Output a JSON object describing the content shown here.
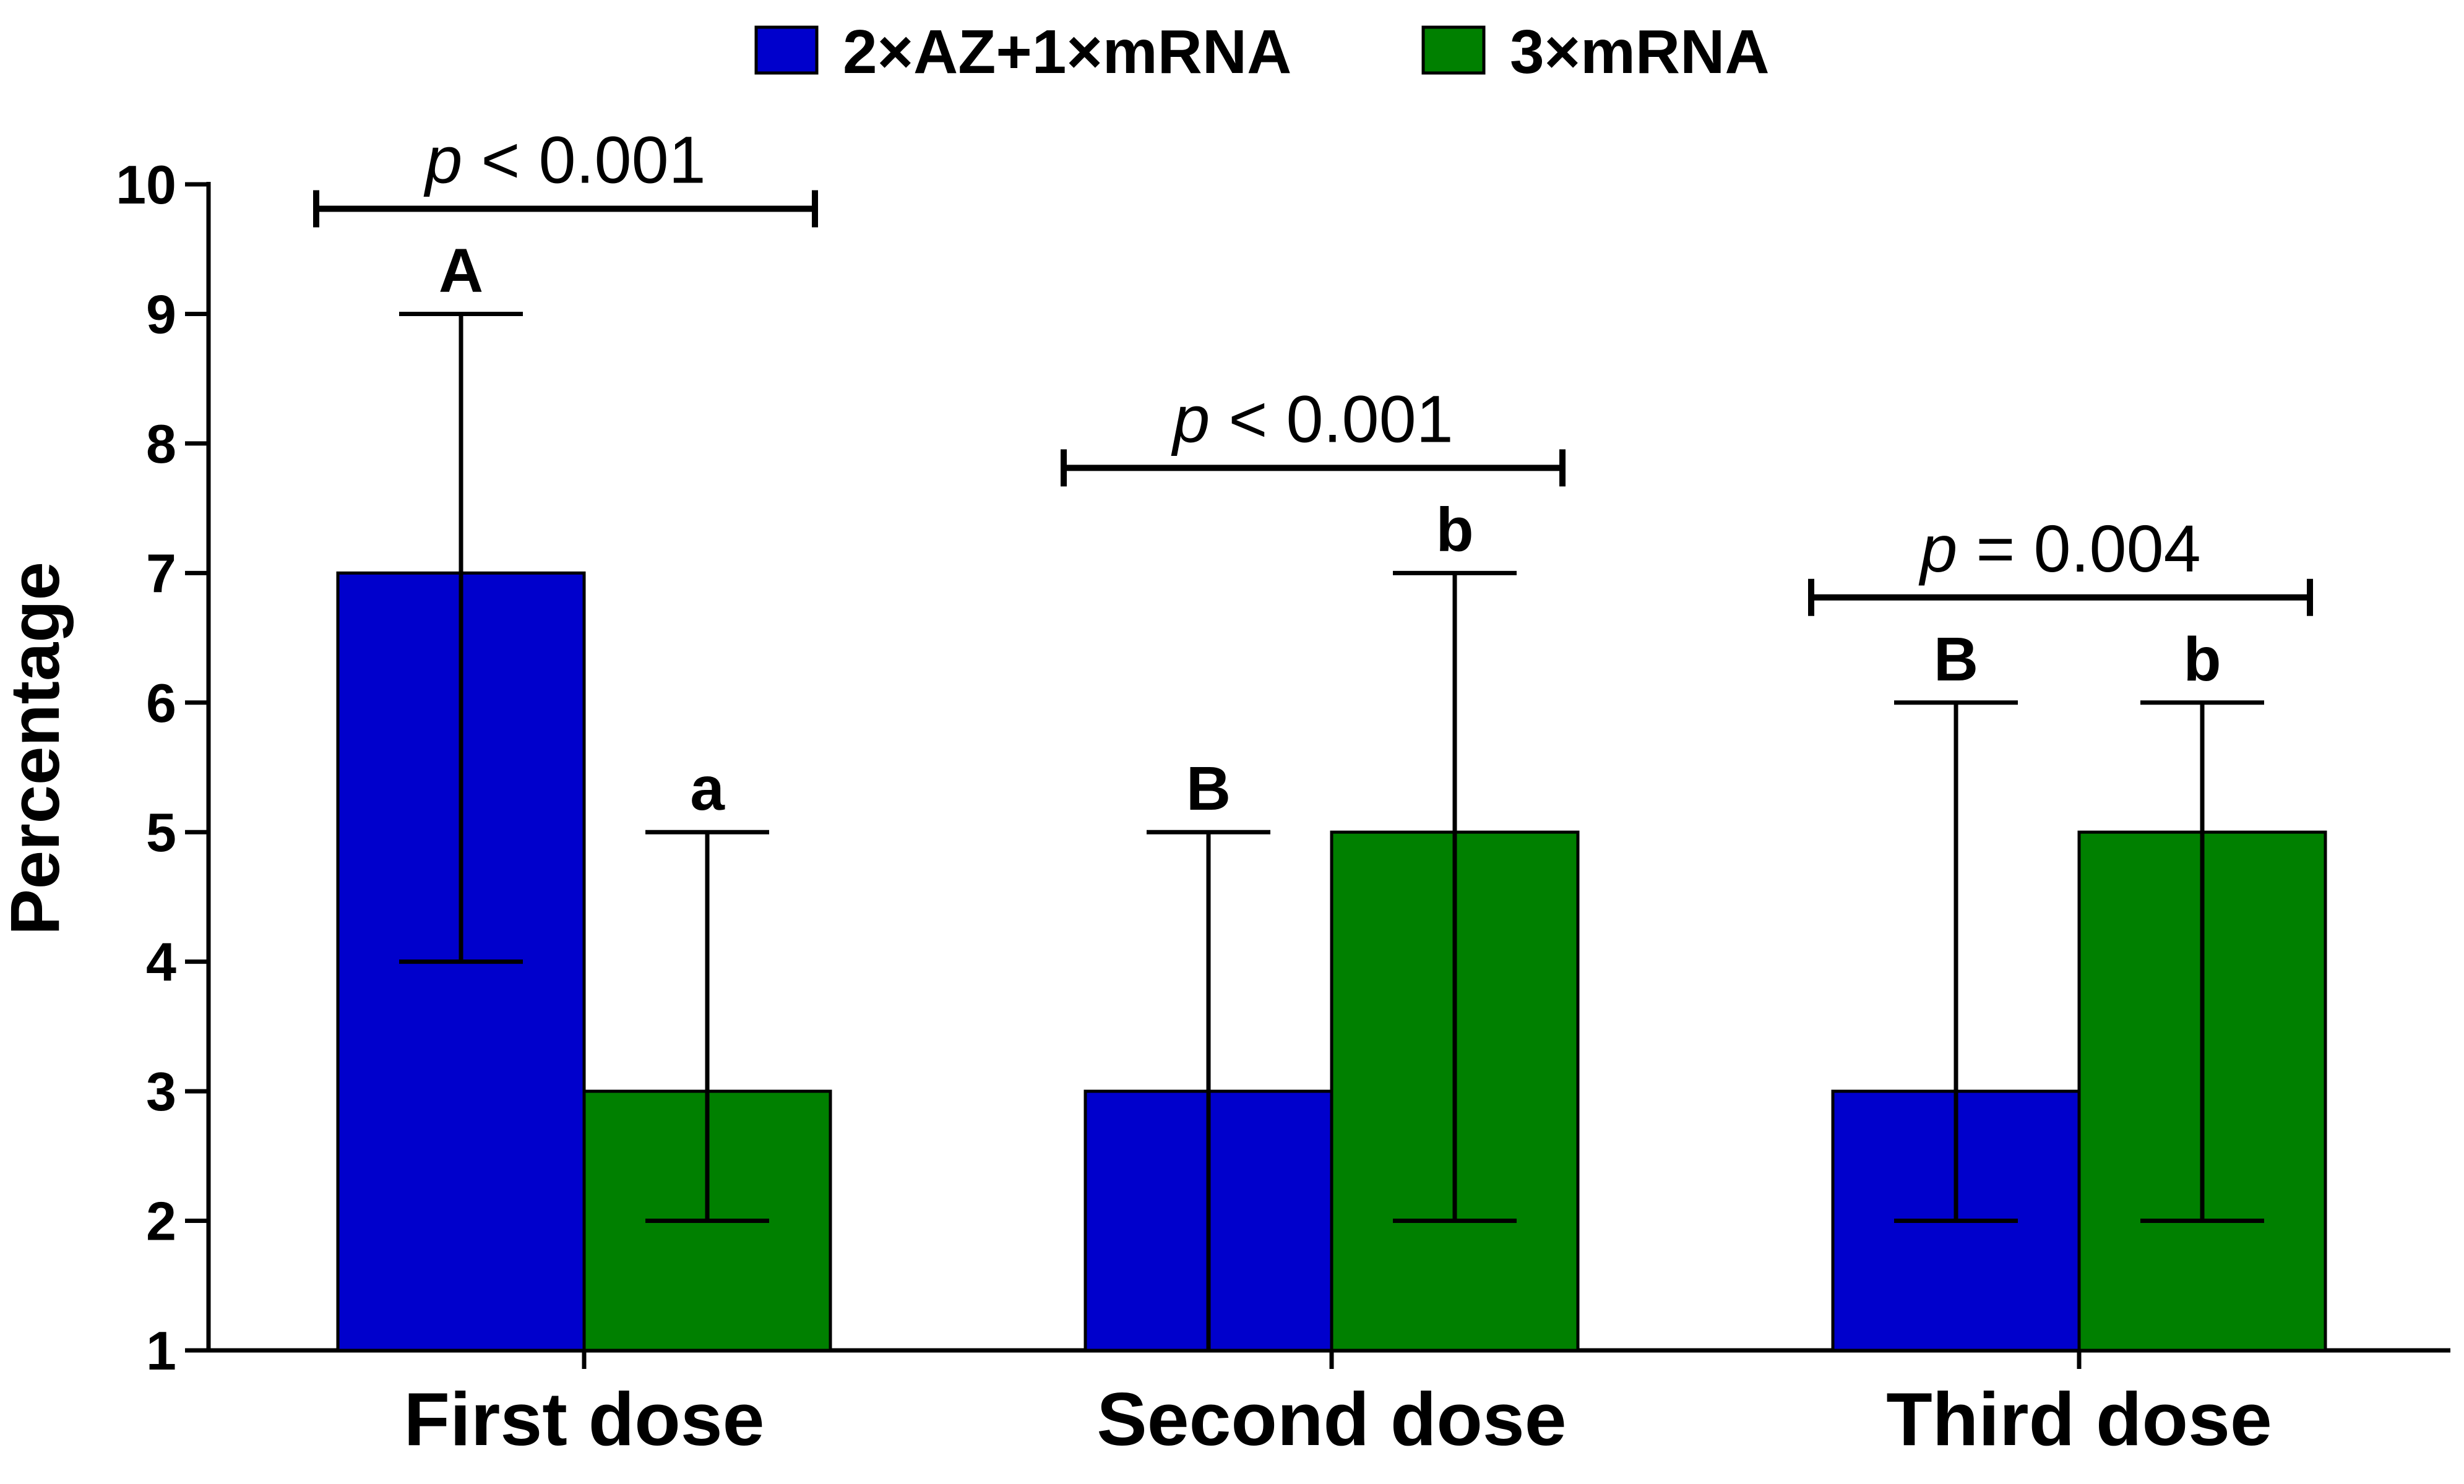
{
  "chart_data": {
    "type": "bar",
    "title": "",
    "xlabel": "",
    "ylabel": "Percentage",
    "ylim": [
      1,
      10
    ],
    "yticks": [
      "1",
      "2",
      "3",
      "4",
      "5",
      "6",
      "7",
      "8",
      "9",
      "10"
    ],
    "categories": [
      "First dose",
      "Second dose",
      "Third dose"
    ],
    "legend_position": "top-center",
    "series": [
      {
        "name": "2×AZ+1×mRNA",
        "color": "#0000CC",
        "values": [
          7,
          3,
          3
        ],
        "error_low": [
          4,
          1,
          2
        ],
        "error_high": [
          9,
          5,
          6
        ],
        "letters": [
          "A",
          "B",
          "B"
        ]
      },
      {
        "name": "3×mRNA",
        "color": "#008000",
        "values": [
          3,
          5,
          5
        ],
        "error_low": [
          2,
          2,
          2
        ],
        "error_high": [
          5,
          7,
          6
        ],
        "letters": [
          "a",
          "b",
          "b"
        ]
      }
    ],
    "comparisons": [
      {
        "category": "First dose",
        "p_symbol": "p",
        "p_rest": " < 0.001"
      },
      {
        "category": "Second dose",
        "p_symbol": "p",
        "p_rest": " < 0.001"
      },
      {
        "category": "Third dose",
        "p_symbol": "p",
        "p_rest": " = 0.004"
      }
    ]
  }
}
